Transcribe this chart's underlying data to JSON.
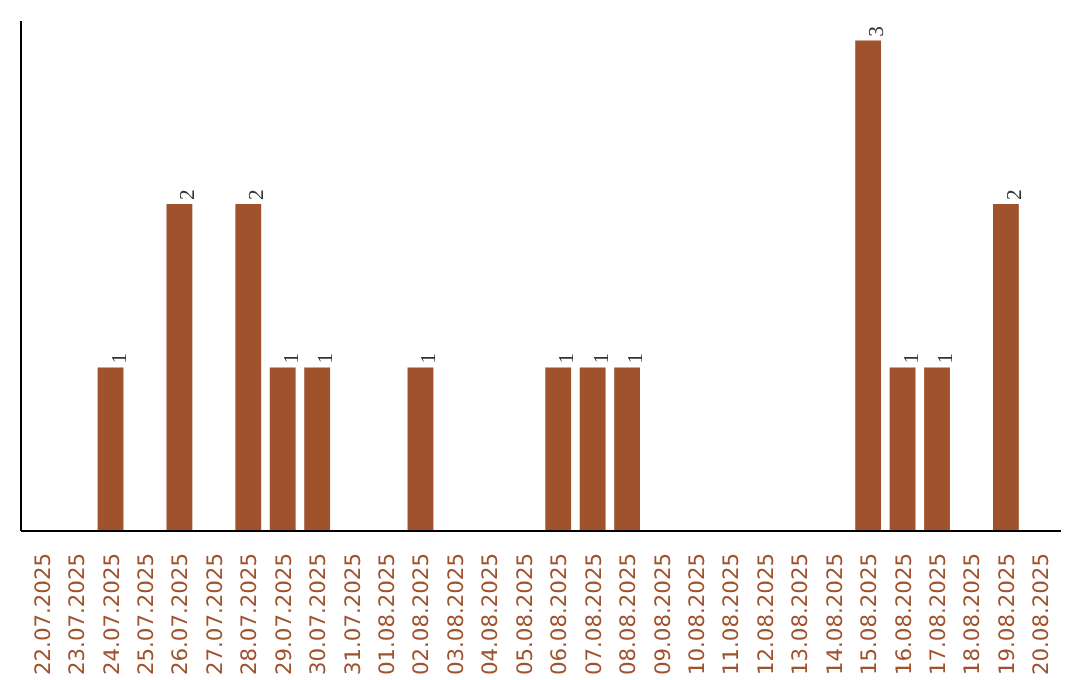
{
  "chart_data": {
    "type": "bar",
    "categories": [
      "22.07.2025",
      "23.07.2025",
      "24.07.2025",
      "25.07.2025",
      "26.07.2025",
      "27.07.2025",
      "28.07.2025",
      "29.07.2025",
      "30.07.2025",
      "31.07.2025",
      "01.08.2025",
      "02.08.2025",
      "03.08.2025",
      "04.08.2025",
      "05.08.2025",
      "06.08.2025",
      "07.08.2025",
      "08.08.2025",
      "09.08.2025",
      "10.08.2025",
      "11.08.2025",
      "12.08.2025",
      "13.08.2025",
      "14.08.2025",
      "15.08.2025",
      "16.08.2025",
      "17.08.2025",
      "18.08.2025",
      "19.08.2025",
      "20.08.2025"
    ],
    "values": [
      0,
      0,
      1,
      0,
      2,
      0,
      2,
      1,
      1,
      0,
      0,
      1,
      0,
      0,
      0,
      1,
      1,
      1,
      0,
      0,
      0,
      0,
      0,
      0,
      3,
      1,
      1,
      0,
      2,
      0
    ],
    "value_labels": [
      null,
      null,
      "1",
      null,
      "2",
      null,
      "2",
      "1",
      "1",
      null,
      null,
      "1",
      null,
      null,
      null,
      "1",
      "1",
      "1",
      null,
      null,
      null,
      null,
      null,
      null,
      "3",
      "1",
      "1",
      null,
      "2",
      null
    ],
    "color": "#a0522d",
    "grid": false,
    "tick_labels": "x"
  }
}
